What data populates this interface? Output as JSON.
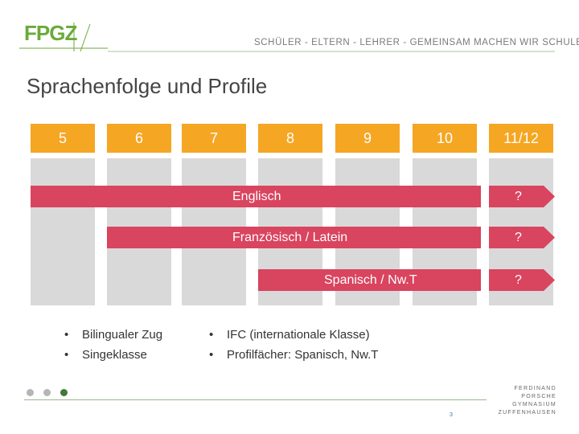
{
  "header": {
    "logo_text": "FPGZ",
    "slogan": "SCHÜLER - ELTERN - LEHRER - GEMEINSAM MACHEN WIR SCHULE"
  },
  "title": "Sprachenfolge und Profile",
  "grades": [
    "5",
    "6",
    "7",
    "8",
    "9",
    "10",
    "11/12"
  ],
  "rows": [
    {
      "label": "Englisch",
      "end_label": "?"
    },
    {
      "label": "Französisch / Latein",
      "end_label": "?"
    },
    {
      "label": "Spanisch / Nw.T",
      "end_label": "?"
    }
  ],
  "notes_left": [
    "Bilingualer Zug",
    "Singeklasse"
  ],
  "notes_right": [
    "IFC (internationale Klasse)",
    "Profilfächer: Spanisch, Nw.T"
  ],
  "footer": {
    "page_number": "3",
    "school_lines": [
      "FERDINAND",
      "PORSCHE",
      "GYMNASIUM",
      "ZUFFENHAUSEN"
    ]
  },
  "colors": {
    "accent_orange": "#f5a623",
    "accent_red": "#d9445f",
    "logo_green": "#6aaa3a",
    "column_gray": "#d9d9d9",
    "dot_gray": "#b5b5b5",
    "dot_green": "#3f7a3a"
  }
}
